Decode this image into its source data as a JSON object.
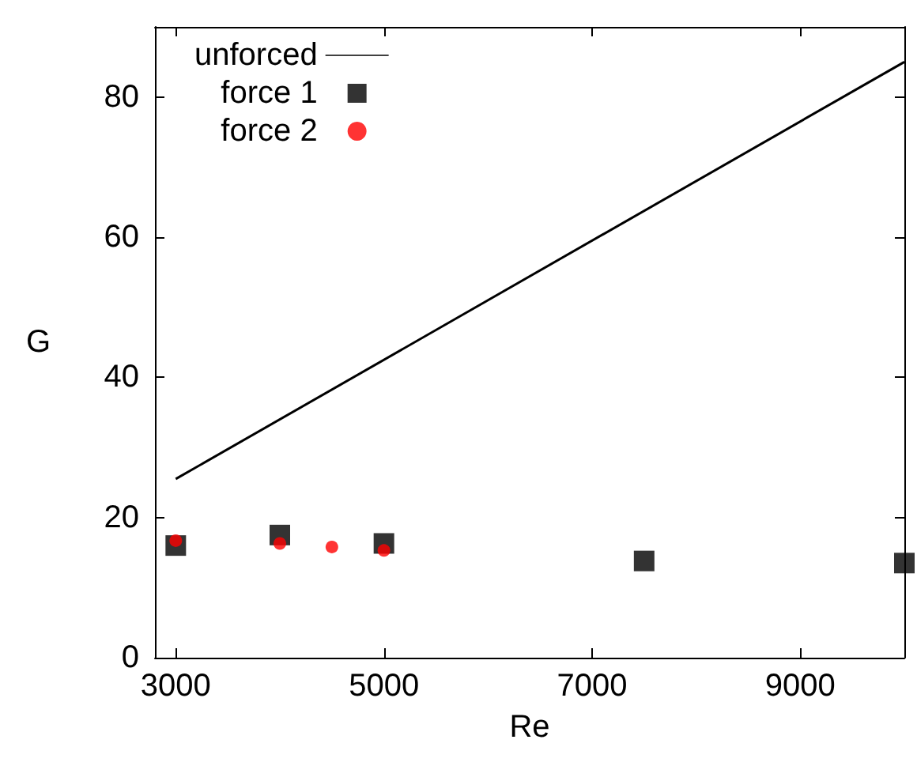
{
  "chart_data": {
    "type": "scatter",
    "xlabel": "Re",
    "ylabel": "G",
    "xlim": [
      2800,
      10000
    ],
    "xticks": [
      3000,
      5000,
      7000,
      9000
    ],
    "ylim": [
      0,
      90
    ],
    "yticks": [
      0,
      20,
      40,
      60,
      80
    ],
    "grid": false,
    "legend": "top left",
    "series": [
      {
        "name": "unforced",
        "type": "line",
        "color": "#000000",
        "marker": "none",
        "line_style": "solid",
        "x": [
          3000,
          10000
        ],
        "values": [
          25.5,
          85
        ]
      },
      {
        "name": "force 1",
        "color": "#000000",
        "marker": "square",
        "x": [
          3000,
          4000,
          5000,
          7500,
          10000
        ],
        "values": [
          16,
          17.5,
          16.3,
          13.8,
          13.5
        ]
      },
      {
        "name": "force 2",
        "color": "#ff0000",
        "marker": "circle",
        "x": [
          3000,
          4000,
          4500,
          5000
        ],
        "values": [
          16.7,
          16.3,
          15.8,
          15.3
        ]
      }
    ]
  }
}
